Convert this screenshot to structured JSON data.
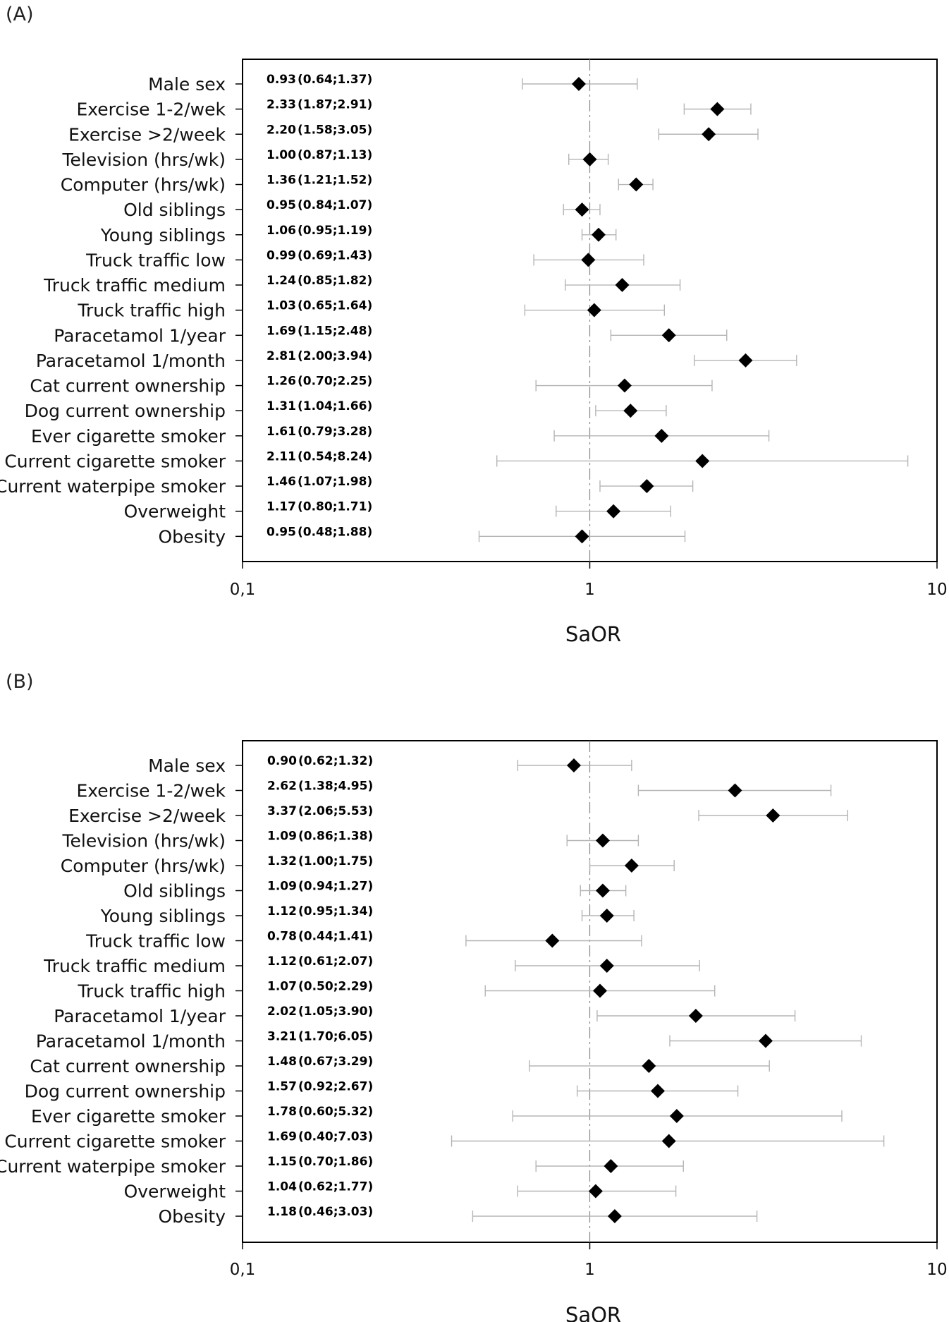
{
  "chart_data": [
    {
      "type": "forest",
      "panel_label": "(A)",
      "xlabel": "SaOR",
      "x_scale": "log",
      "xlim": [
        0.1,
        10
      ],
      "x_ticks": [
        0.1,
        1,
        10
      ],
      "x_tick_labels": [
        "0,1",
        "1",
        "10"
      ],
      "reference_line": 1,
      "rows": [
        {
          "label": "Male sex",
          "or": 0.93,
          "lo": 0.64,
          "hi": 1.37,
          "or_text": "0.93",
          "ci_text": "(0.64;1.37)"
        },
        {
          "label": "Exercise 1-2/wek",
          "or": 2.33,
          "lo": 1.87,
          "hi": 2.91,
          "or_text": "2.33",
          "ci_text": "(1.87;2.91)"
        },
        {
          "label": "Exercise >2/week",
          "or": 2.2,
          "lo": 1.58,
          "hi": 3.05,
          "or_text": "2.20",
          "ci_text": "(1.58;3.05)"
        },
        {
          "label": "Television (hrs/wk)",
          "or": 1.0,
          "lo": 0.87,
          "hi": 1.13,
          "or_text": "1.00",
          "ci_text": "(0.87;1.13)"
        },
        {
          "label": "Computer (hrs/wk)",
          "or": 1.36,
          "lo": 1.21,
          "hi": 1.52,
          "or_text": "1.36",
          "ci_text": "(1.21;1.52)"
        },
        {
          "label": "Old siblings",
          "or": 0.95,
          "lo": 0.84,
          "hi": 1.07,
          "or_text": "0.95",
          "ci_text": "(0.84;1.07)"
        },
        {
          "label": "Young siblings",
          "or": 1.06,
          "lo": 0.95,
          "hi": 1.19,
          "or_text": "1.06",
          "ci_text": "(0.95;1.19)"
        },
        {
          "label": "Truck traffic low",
          "or": 0.99,
          "lo": 0.69,
          "hi": 1.43,
          "or_text": "0.99",
          "ci_text": "(0.69;1.43)"
        },
        {
          "label": "Truck traffic medium",
          "or": 1.24,
          "lo": 0.85,
          "hi": 1.82,
          "or_text": "1.24",
          "ci_text": "(0.85;1.82)"
        },
        {
          "label": "Truck traffic high",
          "or": 1.03,
          "lo": 0.65,
          "hi": 1.64,
          "or_text": "1.03",
          "ci_text": "(0.65;1.64)"
        },
        {
          "label": "Paracetamol 1/year",
          "or": 1.69,
          "lo": 1.15,
          "hi": 2.48,
          "or_text": "1.69",
          "ci_text": "(1.15;2.48)"
        },
        {
          "label": "Paracetamol 1/month",
          "or": 2.81,
          "lo": 2.0,
          "hi": 3.94,
          "or_text": "2.81",
          "ci_text": "(2.00;3.94)"
        },
        {
          "label": "Cat current ownership",
          "or": 1.26,
          "lo": 0.7,
          "hi": 2.25,
          "or_text": "1.26",
          "ci_text": "(0.70;2.25)"
        },
        {
          "label": "Dog current ownership",
          "or": 1.31,
          "lo": 1.04,
          "hi": 1.66,
          "or_text": "1.31",
          "ci_text": "(1.04;1.66)"
        },
        {
          "label": "Ever cigarette smoker",
          "or": 1.61,
          "lo": 0.79,
          "hi": 3.28,
          "or_text": "1.61",
          "ci_text": "(0.79;3.28)"
        },
        {
          "label": "Current cigarette smoker",
          "or": 2.11,
          "lo": 0.54,
          "hi": 8.24,
          "or_text": "2.11",
          "ci_text": "(0.54;8.24)"
        },
        {
          "label": "Current waterpipe smoker",
          "or": 1.46,
          "lo": 1.07,
          "hi": 1.98,
          "or_text": "1.46",
          "ci_text": "(1.07;1.98)"
        },
        {
          "label": "Overweight",
          "or": 1.17,
          "lo": 0.8,
          "hi": 1.71,
          "or_text": "1.17",
          "ci_text": "(0.80;1.71)"
        },
        {
          "label": "Obesity",
          "or": 0.95,
          "lo": 0.48,
          "hi": 1.88,
          "or_text": "0.95",
          "ci_text": "(0.48;1.88)"
        }
      ]
    },
    {
      "type": "forest",
      "panel_label": "(B)",
      "xlabel": "SaOR",
      "x_scale": "log",
      "xlim": [
        0.1,
        10
      ],
      "x_ticks": [
        0.1,
        1,
        10
      ],
      "x_tick_labels": [
        "0,1",
        "1",
        "10"
      ],
      "reference_line": 1,
      "rows": [
        {
          "label": "Male sex",
          "or": 0.9,
          "lo": 0.62,
          "hi": 1.32,
          "or_text": "0.90",
          "ci_text": "(0.62;1.32)"
        },
        {
          "label": "Exercise 1-2/wek",
          "or": 2.62,
          "lo": 1.38,
          "hi": 4.95,
          "or_text": "2.62",
          "ci_text": "(1.38;4.95)"
        },
        {
          "label": "Exercise >2/week",
          "or": 3.37,
          "lo": 2.06,
          "hi": 5.53,
          "or_text": "3.37",
          "ci_text": "(2.06;5.53)"
        },
        {
          "label": "Television (hrs/wk)",
          "or": 1.09,
          "lo": 0.86,
          "hi": 1.38,
          "or_text": "1.09",
          "ci_text": "(0.86;1.38)"
        },
        {
          "label": "Computer (hrs/wk)",
          "or": 1.32,
          "lo": 1.0,
          "hi": 1.75,
          "or_text": "1.32",
          "ci_text": "(1.00;1.75)"
        },
        {
          "label": "Old siblings",
          "or": 1.09,
          "lo": 0.94,
          "hi": 1.27,
          "or_text": "1.09",
          "ci_text": "(0.94;1.27)"
        },
        {
          "label": "Young siblings",
          "or": 1.12,
          "lo": 0.95,
          "hi": 1.34,
          "or_text": "1.12",
          "ci_text": "(0.95;1.34)"
        },
        {
          "label": "Truck traffic low",
          "or": 0.78,
          "lo": 0.44,
          "hi": 1.41,
          "or_text": "0.78",
          "ci_text": "(0.44;1.41)"
        },
        {
          "label": "Truck traffic medium",
          "or": 1.12,
          "lo": 0.61,
          "hi": 2.07,
          "or_text": "1.12",
          "ci_text": "(0.61;2.07)"
        },
        {
          "label": "Truck traffic high",
          "or": 1.07,
          "lo": 0.5,
          "hi": 2.29,
          "or_text": "1.07",
          "ci_text": "(0.50;2.29)"
        },
        {
          "label": "Paracetamol 1/year",
          "or": 2.02,
          "lo": 1.05,
          "hi": 3.9,
          "or_text": "2.02",
          "ci_text": "(1.05;3.90)"
        },
        {
          "label": "Paracetamol 1/month",
          "or": 3.21,
          "lo": 1.7,
          "hi": 6.05,
          "or_text": "3.21",
          "ci_text": "(1.70;6.05)"
        },
        {
          "label": "Cat current ownership",
          "or": 1.48,
          "lo": 0.67,
          "hi": 3.29,
          "or_text": "1.48",
          "ci_text": "(0.67;3.29)"
        },
        {
          "label": "Dog current ownership",
          "or": 1.57,
          "lo": 0.92,
          "hi": 2.67,
          "or_text": "1.57",
          "ci_text": "(0.92;2.67)"
        },
        {
          "label": "Ever cigarette smoker",
          "or": 1.78,
          "lo": 0.6,
          "hi": 5.32,
          "or_text": "1.78",
          "ci_text": "(0.60;5.32)"
        },
        {
          "label": "Current cigarette smoker",
          "or": 1.69,
          "lo": 0.4,
          "hi": 7.03,
          "or_text": "1.69",
          "ci_text": "(0.40;7.03)"
        },
        {
          "label": "Current waterpipe smoker",
          "or": 1.15,
          "lo": 0.7,
          "hi": 1.86,
          "or_text": "1.15",
          "ci_text": "(0.70;1.86)"
        },
        {
          "label": "Overweight",
          "or": 1.04,
          "lo": 0.62,
          "hi": 1.77,
          "or_text": "1.04",
          "ci_text": "(0.62;1.77)"
        },
        {
          "label": "Obesity",
          "or": 1.18,
          "lo": 0.46,
          "hi": 3.03,
          "or_text": "1.18",
          "ci_text": "(0.46;3.03)"
        }
      ]
    }
  ]
}
